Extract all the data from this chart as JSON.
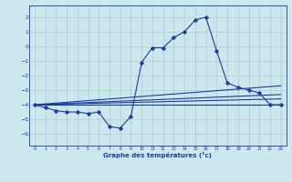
{
  "title": "Graphe des températures (°c)",
  "bg_color": "#cce8ec",
  "grid_color": "#aacccc",
  "line_color": "#1a3aab",
  "marker": "D",
  "markersize": 1.8,
  "linewidth": 0.8,
  "xlim": [
    -0.5,
    23.5
  ],
  "ylim": [
    -6.8,
    2.8
  ],
  "xticks": [
    0,
    1,
    2,
    3,
    4,
    5,
    6,
    7,
    8,
    9,
    10,
    11,
    12,
    13,
    14,
    15,
    16,
    17,
    18,
    19,
    20,
    21,
    22,
    23
  ],
  "yticks": [
    -6,
    -5,
    -4,
    -3,
    -2,
    -1,
    0,
    1,
    2
  ],
  "series": {
    "temp_curve": {
      "x": [
        0,
        1,
        2,
        3,
        4,
        5,
        6,
        7,
        8,
        9,
        10,
        11,
        12,
        13,
        14,
        15,
        16,
        17,
        18,
        19,
        20,
        21,
        22,
        23
      ],
      "y": [
        -4.0,
        -4.2,
        -4.4,
        -4.5,
        -4.5,
        -4.6,
        -4.5,
        -5.5,
        -5.6,
        -4.8,
        -1.1,
        -0.1,
        -0.1,
        0.6,
        1.0,
        1.8,
        2.0,
        -0.3,
        -2.5,
        -2.8,
        -3.0,
        -3.2,
        -4.0,
        -4.0
      ]
    },
    "line1": {
      "x": [
        0,
        23
      ],
      "y": [
        -4.0,
        -4.0
      ]
    },
    "line2": {
      "x": [
        0,
        23
      ],
      "y": [
        -4.0,
        -2.7
      ]
    },
    "line3": {
      "x": [
        0,
        23
      ],
      "y": [
        -4.0,
        -3.3
      ]
    },
    "line4": {
      "x": [
        0,
        23
      ],
      "y": [
        -4.0,
        -3.6
      ]
    }
  }
}
